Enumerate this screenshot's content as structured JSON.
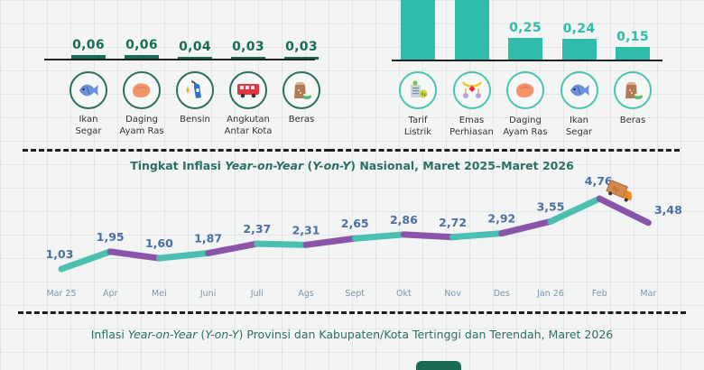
{
  "colors": {
    "dark_green": "#1a6b55",
    "teal": "#2fbcaa",
    "line_teal": "#4cc0b0",
    "line_purple": "#8a55a8",
    "title_green": "#2b6f63",
    "label_blue": "#4a6fa0"
  },
  "chart_data": [
    {
      "type": "bar",
      "title": "",
      "categories": [
        "Ikan Segar",
        "Daging Ayam Ras",
        "Bensin",
        "Angkutan Antar Kota",
        "Beras"
      ],
      "values": [
        0.06,
        0.06,
        0.04,
        0.03,
        0.03
      ],
      "value_labels": [
        "0,06",
        "0,06",
        "0,04",
        "0,03",
        "0,03"
      ],
      "icons": [
        "fish-icon",
        "chicken-meat-icon",
        "fuel-pump-icon",
        "bus-icon",
        "rice-sack-icon"
      ],
      "label_lines": [
        [
          "Ikan",
          "Segar"
        ],
        [
          "Daging",
          "Ayam Ras"
        ],
        [
          "Bensin"
        ],
        [
          "Angkutan",
          "Antar Kota"
        ],
        [
          "Beras"
        ]
      ]
    },
    {
      "type": "bar",
      "title": "",
      "categories": [
        "Tarif Listrik",
        "Emas Perhiasan",
        "Daging Ayam Ras",
        "Ikan Segar",
        "Beras"
      ],
      "values": [
        null,
        null,
        0.25,
        0.24,
        0.15
      ],
      "value_labels": [
        "",
        "",
        "0,25",
        "0,24",
        "0,15"
      ],
      "note": "Tarif Listrik and Emas Perhiasan bars extend beyond the visible top; their values are not shown",
      "icons": [
        "electricity-bill-icon",
        "gold-jewelry-icon",
        "chicken-meat-icon",
        "fish-icon",
        "rice-sack-icon"
      ],
      "label_lines": [
        [
          "Tarif",
          "Listrik"
        ],
        [
          "Emas",
          "Perhiasan"
        ],
        [
          "Daging",
          "Ayam Ras"
        ],
        [
          "Ikan",
          "Segar"
        ],
        [
          "Beras"
        ]
      ]
    },
    {
      "type": "line",
      "title_parts": [
        "Tingkat Inflasi ",
        "Year-on-Year",
        " (",
        "Y-on-Y",
        ") Nasional, Maret 2025–Maret 2026"
      ],
      "categories": [
        "Mar 25",
        "Apr",
        "Mei",
        "Juni",
        "Juli",
        "Ags",
        "Sept",
        "Okt",
        "Nov",
        "Des",
        "Jan 26",
        "Feb",
        "Mar"
      ],
      "values": [
        1.03,
        1.95,
        1.6,
        1.87,
        2.37,
        2.31,
        2.65,
        2.86,
        2.72,
        2.92,
        3.55,
        4.76,
        3.48
      ],
      "value_labels": [
        "1,03",
        "1,95",
        "1,60",
        "1,87",
        "2,37",
        "2,31",
        "2,65",
        "2,86",
        "2,72",
        "2,92",
        "3,55",
        "4,76",
        "3,48"
      ],
      "segment_colors": [
        "teal",
        "purple",
        "teal",
        "purple",
        "teal",
        "purple",
        "teal",
        "purple",
        "teal",
        "purple",
        "teal",
        "purple"
      ],
      "ylim": [
        0,
        5.5
      ],
      "grid": false,
      "annotation_icon": "delivery-truck-icon"
    }
  ],
  "bottom_title_parts": [
    "Inflasi ",
    "Year-on-Year",
    " (",
    "Y-on-Y",
    ") Provinsi dan Kabupaten/Kota Tertinggi dan Terendah, Maret 2026"
  ]
}
